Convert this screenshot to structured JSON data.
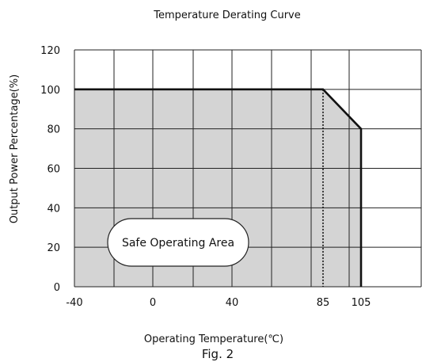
{
  "chart_data": {
    "type": "area",
    "title": "Temperature Derating Curve",
    "xlabel": "Operating Temperature(℃)",
    "ylabel": "Output Power Percentage(%)",
    "figure_caption": "Fig. 2",
    "area_label": "Safe Operating Area",
    "xlim": [
      -40,
      125
    ],
    "ylim": [
      0,
      120
    ],
    "x_ticks": [
      -40,
      0,
      40,
      85,
      105
    ],
    "y_ticks": [
      0,
      20,
      40,
      60,
      80,
      100,
      120
    ],
    "x_grid": [
      -40,
      -20,
      0,
      20,
      40,
      60,
      80,
      100,
      125
    ],
    "series": [
      {
        "x": [
          -40,
          85,
          105,
          105
        ],
        "y": [
          100,
          100,
          80,
          0
        ]
      }
    ],
    "reference_lines": [
      {
        "x": 85,
        "style": "dotted"
      }
    ],
    "grid": true,
    "colors": {
      "fill": "#d4d4d4",
      "line": "#111111",
      "grid": "#222222"
    }
  }
}
